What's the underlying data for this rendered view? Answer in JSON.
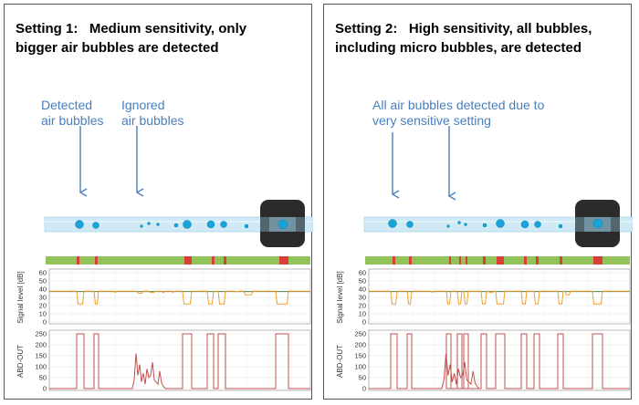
{
  "panels": [
    {
      "id": "setting-1",
      "title": "Setting 1:   Medium sensitivity, only\nbigger air bubbles are detected",
      "annotations": [
        "Detected\nair bubbles",
        "Ignored\nair bubbles"
      ],
      "signal_label": "Signal level [dB]",
      "abd_label": "ABD-OUT",
      "signal_ticks": [
        "60",
        "50",
        "40",
        "30",
        "20",
        "10",
        "0"
      ],
      "abd_ticks": [
        "250",
        "200",
        "150",
        "100",
        "50",
        "0"
      ]
    },
    {
      "id": "setting-2",
      "title": "Setting 2:   High sensitivity, all bubbles,\nincluding micro bubbles, are detected",
      "annotations": [
        "All air bubbles detected due to\nvery sensitive setting"
      ],
      "signal_label": "Signal level [dB]",
      "abd_label": "ABD-OUT",
      "signal_ticks": [
        "60",
        "50",
        "40",
        "30",
        "20",
        "10",
        "0"
      ],
      "abd_ticks": [
        "250",
        "200",
        "150",
        "100",
        "50",
        "0"
      ]
    }
  ],
  "colors": {
    "annotation": "#4a7ebb",
    "tube": "#cfe9f5",
    "bubble": "#1aa3d9",
    "status_ok": "#92c35a",
    "status_alarm": "#d9403a",
    "signal_line": "#f0a030",
    "threshold_line": "#2d6b2d",
    "abd_line": "#c0504d",
    "sensor": "#2b2b2b"
  }
}
